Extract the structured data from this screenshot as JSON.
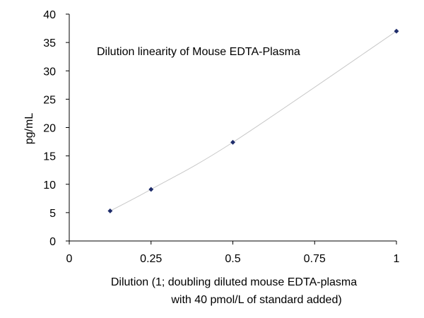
{
  "chart_data": {
    "type": "scatter",
    "title": "Dilution linearity of Mouse EDTA-Plasma",
    "xlabel_lines": [
      "Dilution (1; doubling diluted mouse EDTA-plasma",
      "with 40 pmol/L of standard added)"
    ],
    "ylabel": "pg/mL",
    "xlim": [
      0,
      1
    ],
    "ylim": [
      0,
      40
    ],
    "x_ticks": [
      0,
      0.25,
      0.5,
      0.75,
      1
    ],
    "y_ticks": [
      0,
      5,
      10,
      15,
      20,
      25,
      30,
      35,
      40
    ],
    "x_tick_labels": [
      "0",
      "0.25",
      "0.5",
      "0.75",
      "1"
    ],
    "y_tick_labels": [
      "0",
      "5",
      "10",
      "15",
      "20",
      "25",
      "30",
      "35",
      "40"
    ],
    "grid": false,
    "legend": "none",
    "series": [
      {
        "x": [
          0.125,
          0.25,
          0.5,
          1
        ],
        "y": [
          5.3,
          9.1,
          17.4,
          37.0
        ],
        "marker": "diamond",
        "marker_color": "#1f2d6b",
        "line": "smooth",
        "line_color": "#c8c8c8"
      }
    ]
  }
}
